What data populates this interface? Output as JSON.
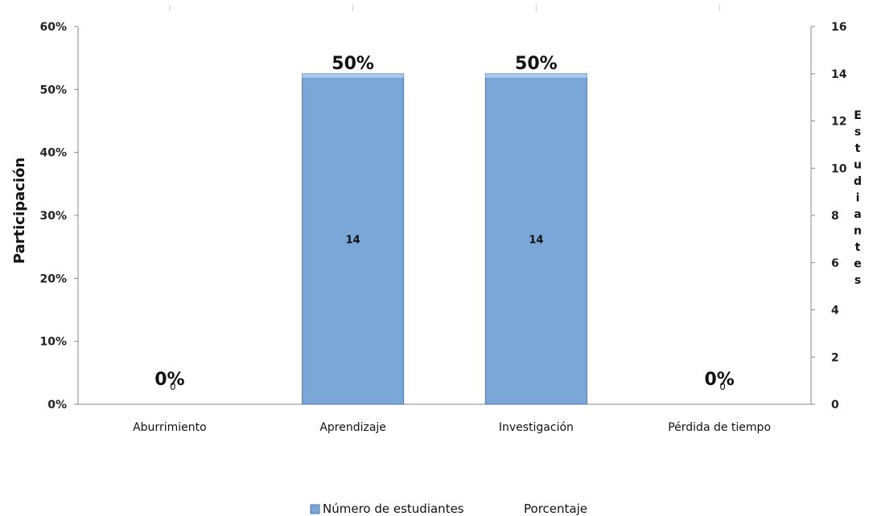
{
  "chart_data": {
    "type": "bar",
    "categories": [
      "Aburrimiento",
      "Aprendizaje",
      "Investigación",
      "Pérdida de tiempo"
    ],
    "series": [
      {
        "name": "Número de estudiantes",
        "values": [
          0,
          14,
          14,
          0
        ],
        "axis": "right",
        "color": "#7aa6d8"
      },
      {
        "name": "Porcentaje",
        "values": [
          0,
          50,
          50,
          0
        ],
        "axis": "left",
        "unit": "%"
      }
    ],
    "value_labels_in_bars": [
      "0",
      "14",
      "14",
      "0"
    ],
    "percent_labels": [
      "0%",
      "50%",
      "50%",
      "0%"
    ],
    "ylabel": "Participación",
    "y2label": "Estudiantes",
    "ylim": [
      0,
      60
    ],
    "y_ticks": [
      "0%",
      "10%",
      "20%",
      "30%",
      "40%",
      "50%",
      "60%"
    ],
    "y2lim": [
      0,
      16
    ],
    "y2_ticks": [
      "0",
      "2",
      "4",
      "6",
      "8",
      "10",
      "12",
      "14",
      "16"
    ],
    "legend": [
      "Número de estudiantes",
      "Porcentaje"
    ],
    "legend_position": "bottom",
    "grid": false
  }
}
